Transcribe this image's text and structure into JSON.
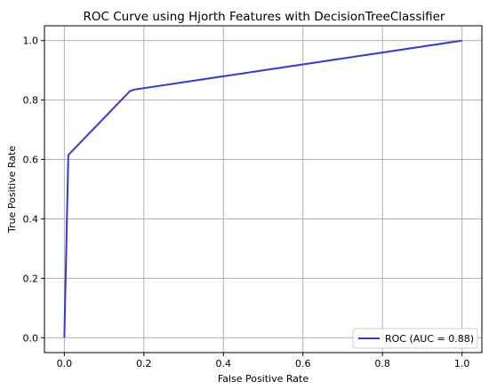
{
  "chart_data": {
    "type": "line",
    "title": "ROC Curve using Hjorth Features with DecisionTreeClassifier",
    "xlabel": "False Positive Rate",
    "ylabel": "True Positive Rate",
    "xlim": [
      -0.05,
      1.05
    ],
    "ylim": [
      -0.05,
      1.05
    ],
    "xticks": [
      "0.0",
      "0.2",
      "0.4",
      "0.6",
      "0.8",
      "1.0"
    ],
    "yticks": [
      "0.0",
      "0.2",
      "0.4",
      "0.6",
      "0.8",
      "1.0"
    ],
    "grid": true,
    "legend_position": "lower-right",
    "series": [
      {
        "name": "ROC (AUC = 0.88)",
        "color": "#3838d4",
        "x": [
          0.0,
          0.01,
          0.165,
          0.175,
          1.0
        ],
        "y": [
          0.0,
          0.615,
          0.83,
          0.835,
          1.0
        ]
      }
    ]
  }
}
